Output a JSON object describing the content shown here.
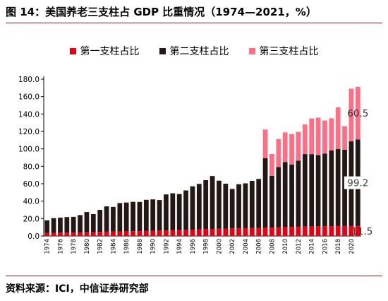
{
  "header": {
    "title": "图 14：美国养老三支柱占 GDP 比重情况（1974—2021，%）"
  },
  "footer": {
    "source": "资料来源：ICI，中信证券研究部"
  },
  "chart_data": {
    "type": "bar",
    "stacked": true,
    "title": "",
    "xlabel": "",
    "ylabel": "",
    "ylim": [
      0,
      180
    ],
    "yticks": [
      "0.0",
      "20.0",
      "40.0",
      "60.0",
      "80.0",
      "100.0",
      "120.0",
      "140.0",
      "160.0",
      "180.0"
    ],
    "grid": false,
    "legend_position": "top",
    "categories": [
      "1974",
      "1975",
      "1976",
      "1977",
      "1978",
      "1979",
      "1980",
      "1981",
      "1982",
      "1983",
      "1984",
      "1985",
      "1986",
      "1987",
      "1988",
      "1989",
      "1990",
      "1991",
      "1992",
      "1993",
      "1994",
      "1995",
      "1996",
      "1997",
      "1998",
      "1999",
      "2000",
      "2001",
      "2002",
      "2003",
      "2004",
      "2005",
      "2006",
      "2007",
      "2008",
      "2009",
      "2010",
      "2011",
      "2012",
      "2013",
      "2014",
      "2015",
      "2016",
      "2017",
      "2018",
      "2019",
      "2020",
      "2021"
    ],
    "xtick_labels": [
      "1974",
      "1976",
      "1978",
      "1980",
      "1982",
      "1984",
      "1986",
      "1988",
      "1990",
      "1992",
      "1994",
      "1996",
      "1998",
      "2000",
      "2002",
      "2004",
      "2006",
      "2008",
      "2010",
      "2012",
      "2014",
      "2016",
      "2018",
      "2020"
    ],
    "series": [
      {
        "name": "第一支柱占比",
        "color": "#e60012",
        "values": [
          3.5,
          3.6,
          3.8,
          3.9,
          4.0,
          4.1,
          4.3,
          4.5,
          4.8,
          5.0,
          5.1,
          5.2,
          5.4,
          5.5,
          5.6,
          5.8,
          6.0,
          6.2,
          6.4,
          6.6,
          6.8,
          7.0,
          7.3,
          7.6,
          7.9,
          8.1,
          8.3,
          8.5,
          8.7,
          8.8,
          9.0,
          9.2,
          9.4,
          9.6,
          9.8,
          10.0,
          10.2,
          10.4,
          10.6,
          10.8,
          11.0,
          11.1,
          11.2,
          11.3,
          11.4,
          11.5,
          11.5,
          11.5
        ]
      },
      {
        "name": "第二支柱占比",
        "color": "#231815",
        "values": [
          14.5,
          16.9,
          17.2,
          17.8,
          18.0,
          19.9,
          23.2,
          20.7,
          25.2,
          29.0,
          28.3,
          32.6,
          33.0,
          33.7,
          33.5,
          35.7,
          36.0,
          35.1,
          41.3,
          42.4,
          41.4,
          45.3,
          49.7,
          52.2,
          56.2,
          60.7,
          55.2,
          51.5,
          45.3,
          50.6,
          51.4,
          54.1,
          56.1,
          79.6,
          59.3,
          69.2,
          74.7,
          71.6,
          75.9,
          83.2,
          82.9,
          81.7,
          83.3,
          86.8,
          88.3,
          87.5,
          97.1,
          99.2
        ]
      },
      {
        "name": "第三支柱占比",
        "color": "#ff6e85",
        "values": [
          0,
          0,
          0,
          0,
          0,
          0,
          0,
          0,
          0,
          0,
          0,
          0,
          0,
          0,
          0,
          0,
          0,
          0,
          0,
          0,
          0,
          0,
          0,
          0,
          0,
          0,
          0,
          0,
          0,
          0,
          0,
          0,
          0,
          33.0,
          25.0,
          32.0,
          34.0,
          35.0,
          33.0,
          34.0,
          41.0,
          43.0,
          38.0,
          37.0,
          48.0,
          27.0,
          60.5,
          60.5
        ]
      }
    ],
    "annotations": [
      {
        "text": "60.5",
        "series": 2,
        "category": "2021"
      },
      {
        "text": "99.2",
        "series": 1,
        "category": "2021"
      },
      {
        "text": "11.5",
        "series": 0,
        "category": "2021"
      }
    ]
  }
}
